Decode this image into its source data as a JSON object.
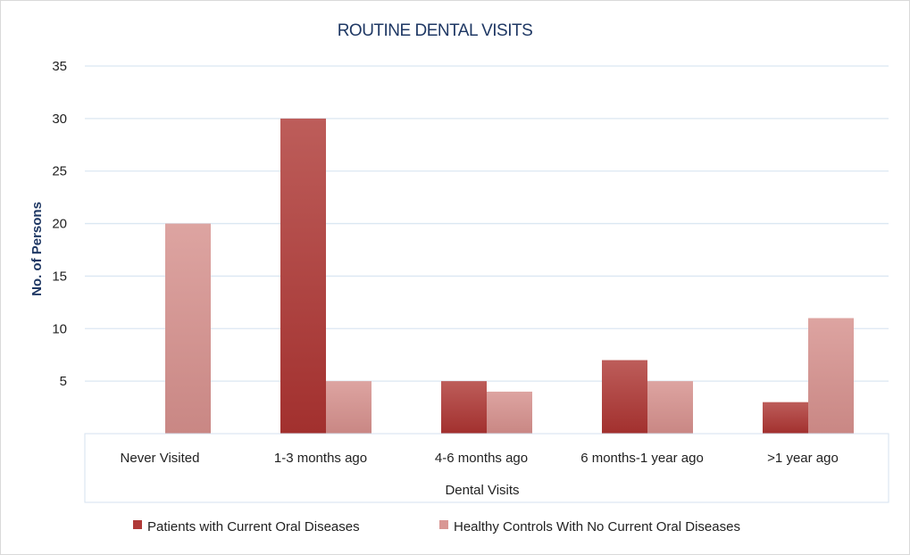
{
  "chart_data": {
    "type": "bar",
    "title": "ROUTINE DENTAL VISITS",
    "xlabel": "Dental Visits",
    "ylabel": "No. of Persons",
    "categories": [
      "Never Visited",
      "1-3 months ago",
      "4-6 months ago",
      "6 months-1 year ago",
      ">1 year ago"
    ],
    "series": [
      {
        "name": "Patients with Current Oral Diseases",
        "values": [
          0,
          30,
          5,
          7,
          3
        ],
        "color": "#b03a38"
      },
      {
        "name": "Healthy Controls With No Current Oral Diseases",
        "values": [
          20,
          5,
          4,
          5,
          11
        ],
        "color": "#d99794"
      }
    ],
    "ylim": [
      0,
      35
    ],
    "yticks": [
      5,
      10,
      15,
      20,
      25,
      30,
      35
    ],
    "grid": true,
    "legend_position": "bottom",
    "colors": {
      "title": "#1f3864",
      "ylabel": "#1f3864",
      "gridline": "#dbe7f2",
      "text": "#222222"
    }
  }
}
